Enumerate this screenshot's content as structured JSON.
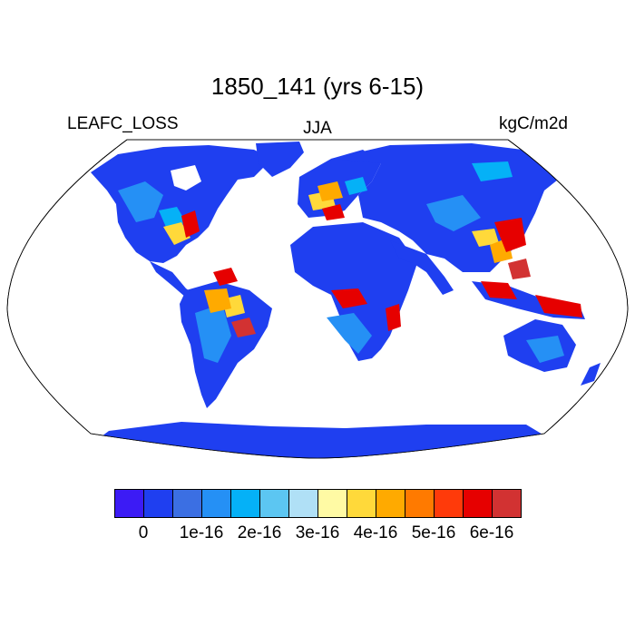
{
  "title": "1850_141 (yrs 6-15)",
  "left_label": "LEAFC_LOSS",
  "center_label": "JJA",
  "right_label": "kgC/m2d",
  "colorbar": {
    "colors": [
      "#3c1bf5",
      "#1f3ff0",
      "#3b6fe3",
      "#2590f5",
      "#05b1f7",
      "#5cc6f2",
      "#b0e0f6",
      "#fffaa4",
      "#ffd93a",
      "#ffaa00",
      "#ff7a00",
      "#ff3a0a",
      "#e60000",
      "#d23232"
    ],
    "tick_labels": [
      "0",
      "1e-16",
      "2e-16",
      "3e-16",
      "4e-16",
      "5e-16",
      "6e-16"
    ]
  },
  "map": {
    "projection": "Robinson",
    "ocean_color": "#ffffff",
    "base_land_color": "#1f3ff0"
  }
}
